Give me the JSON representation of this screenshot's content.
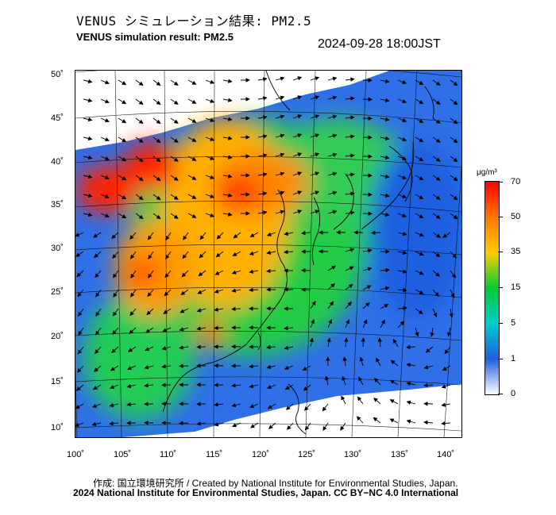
{
  "header": {
    "title_jp": "VENUS シミュレーション結果: PM2.5",
    "title_en": "VENUS simulation result: PM2.5",
    "timestamp": "2024-09-28 18:00JST"
  },
  "map": {
    "lat_labels": [
      "50˚",
      "45˚",
      "40˚",
      "35˚",
      "30˚",
      "25˚",
      "20˚",
      "15˚",
      "10˚"
    ],
    "lon_labels": [
      "100˚",
      "105˚",
      "110˚",
      "115˚",
      "120˚",
      "125˚",
      "130˚",
      "135˚",
      "140˚"
    ],
    "overlay": "wind-vectors",
    "variable": "PM2.5"
  },
  "colorbar": {
    "unit": "μg/m³",
    "ticks": [
      "70",
      "50",
      "35",
      "15",
      "5",
      "1",
      "0"
    ],
    "colors": [
      "#ff0000",
      "#ff7700",
      "#ffcc00",
      "#00cc33",
      "#00cccc",
      "#1f5fe0",
      "#ffffff"
    ]
  },
  "footer": {
    "credit_line1": "作成: 国立環境研究所 / Created by National Institute for Environmental Studies, Japan.",
    "credit_line2": "2024 National Institute for Environmental Studies, Japan. CC BY−NC 4.0 International"
  }
}
